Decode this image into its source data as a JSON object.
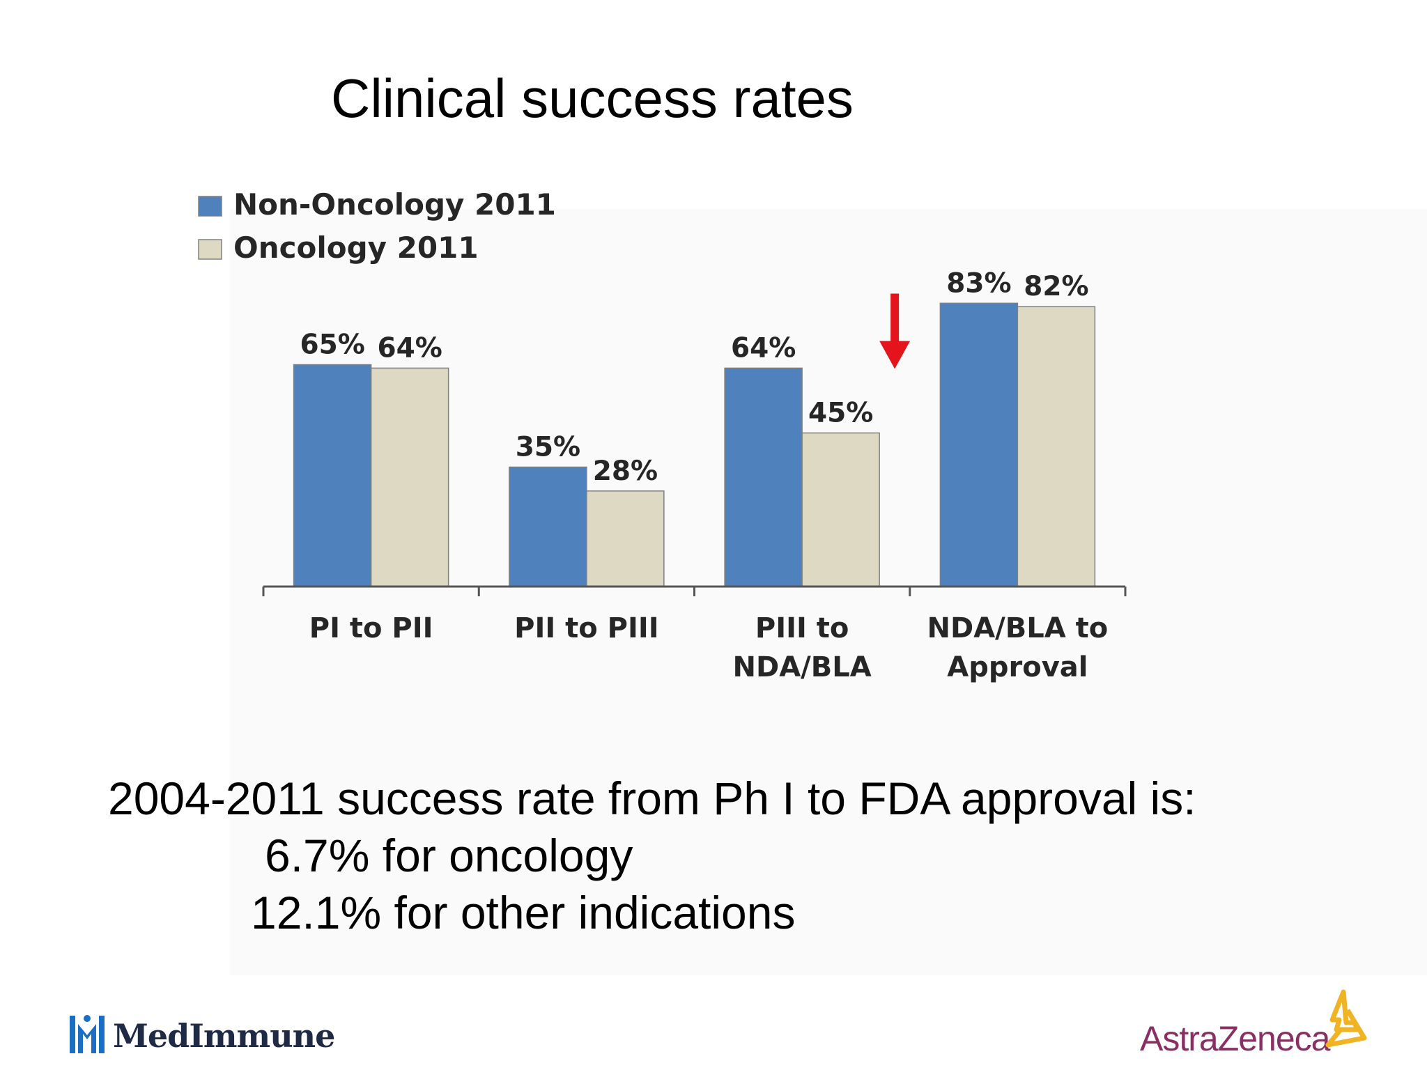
{
  "slide": {
    "title": "Clinical success rates",
    "summary": [
      "2004-2011 success rate from Ph I to FDA approval is:",
      "6.7% for oncology",
      "12.1% for other indications"
    ]
  },
  "logos": {
    "left": "MedImmune",
    "right": "AstraZeneca"
  },
  "colors": {
    "non_oncology": "#4f81bd",
    "oncology": "#ddd9c3",
    "arrow": "#e3141b",
    "astrazeneca": "#8a2f63",
    "astrazeneca_symbol": "#f0b323"
  },
  "chart_data": {
    "type": "bar",
    "title": "",
    "xlabel": "",
    "ylabel": "",
    "ylim": [
      0,
      100
    ],
    "grid": false,
    "legend_position": "top-left",
    "categories": [
      "PI to PII",
      "PII to PIII",
      "PIII to NDA/BLA",
      "NDA/BLA to Approval"
    ],
    "category_lines": [
      [
        "PI to PII"
      ],
      [
        "PII to PIII"
      ],
      [
        "PIII to",
        "NDA/BLA"
      ],
      [
        "NDA/BLA to",
        "Approval"
      ]
    ],
    "series": [
      {
        "name": "Non-Oncology 2011",
        "values": [
          65,
          35,
          64,
          83
        ],
        "labels": [
          "65%",
          "35%",
          "64%",
          "83%"
        ]
      },
      {
        "name": "Oncology 2011",
        "values": [
          64,
          28,
          45,
          82
        ],
        "labels": [
          "64%",
          "28%",
          "45%",
          "82%"
        ]
      }
    ],
    "annotation": {
      "type": "down-arrow",
      "category_index": 2,
      "series_index": 1,
      "color": "#e3141b"
    }
  }
}
